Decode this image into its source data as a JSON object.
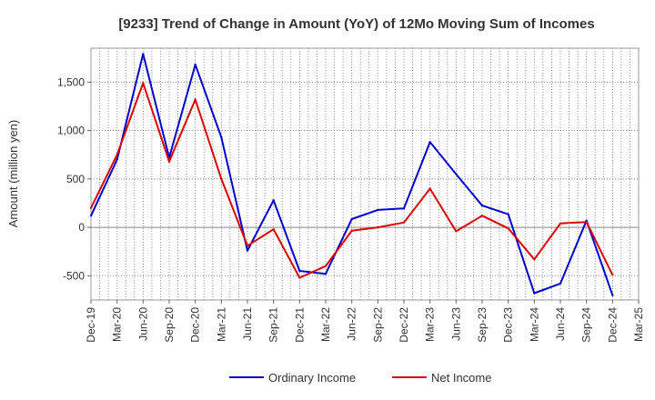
{
  "chart_data": {
    "type": "line",
    "title": "[9233]  Trend of Change in Amount (YoY) of 12Mo Moving Sum of Incomes",
    "xlabel": "",
    "ylabel": "Amount (million yen)",
    "ylim": [
      -750,
      1850
    ],
    "yticks": [
      -500,
      0,
      500,
      1000,
      1500
    ],
    "ytick_labels": [
      "-500",
      "0",
      "500",
      "1,000",
      "1,500"
    ],
    "categories": [
      "Dec-19",
      "Mar-20",
      "Jun-20",
      "Sep-20",
      "Dec-20",
      "Mar-21",
      "Jun-21",
      "Sep-21",
      "Dec-21",
      "Mar-22",
      "Jun-22",
      "Sep-22",
      "Dec-22",
      "Mar-23",
      "Jun-23",
      "Sep-23",
      "Dec-23",
      "Mar-24",
      "Jun-24",
      "Sep-24",
      "Dec-24",
      "Mar-25"
    ],
    "series": [
      {
        "name": "Ordinary Income",
        "color": "#0000cc",
        "values": [
          120,
          700,
          1790,
          720,
          1680,
          930,
          -240,
          280,
          -450,
          -480,
          85,
          180,
          195,
          880,
          550,
          225,
          135,
          -680,
          -580,
          70,
          -700,
          null
        ]
      },
      {
        "name": "Net Income",
        "color": "#dd0000",
        "values": [
          200,
          750,
          1490,
          680,
          1320,
          500,
          -190,
          -20,
          -520,
          -400,
          -35,
          0,
          50,
          400,
          -40,
          120,
          -10,
          -330,
          40,
          55,
          -490,
          null
        ]
      }
    ],
    "grid": true,
    "legend": "bottom-center"
  }
}
